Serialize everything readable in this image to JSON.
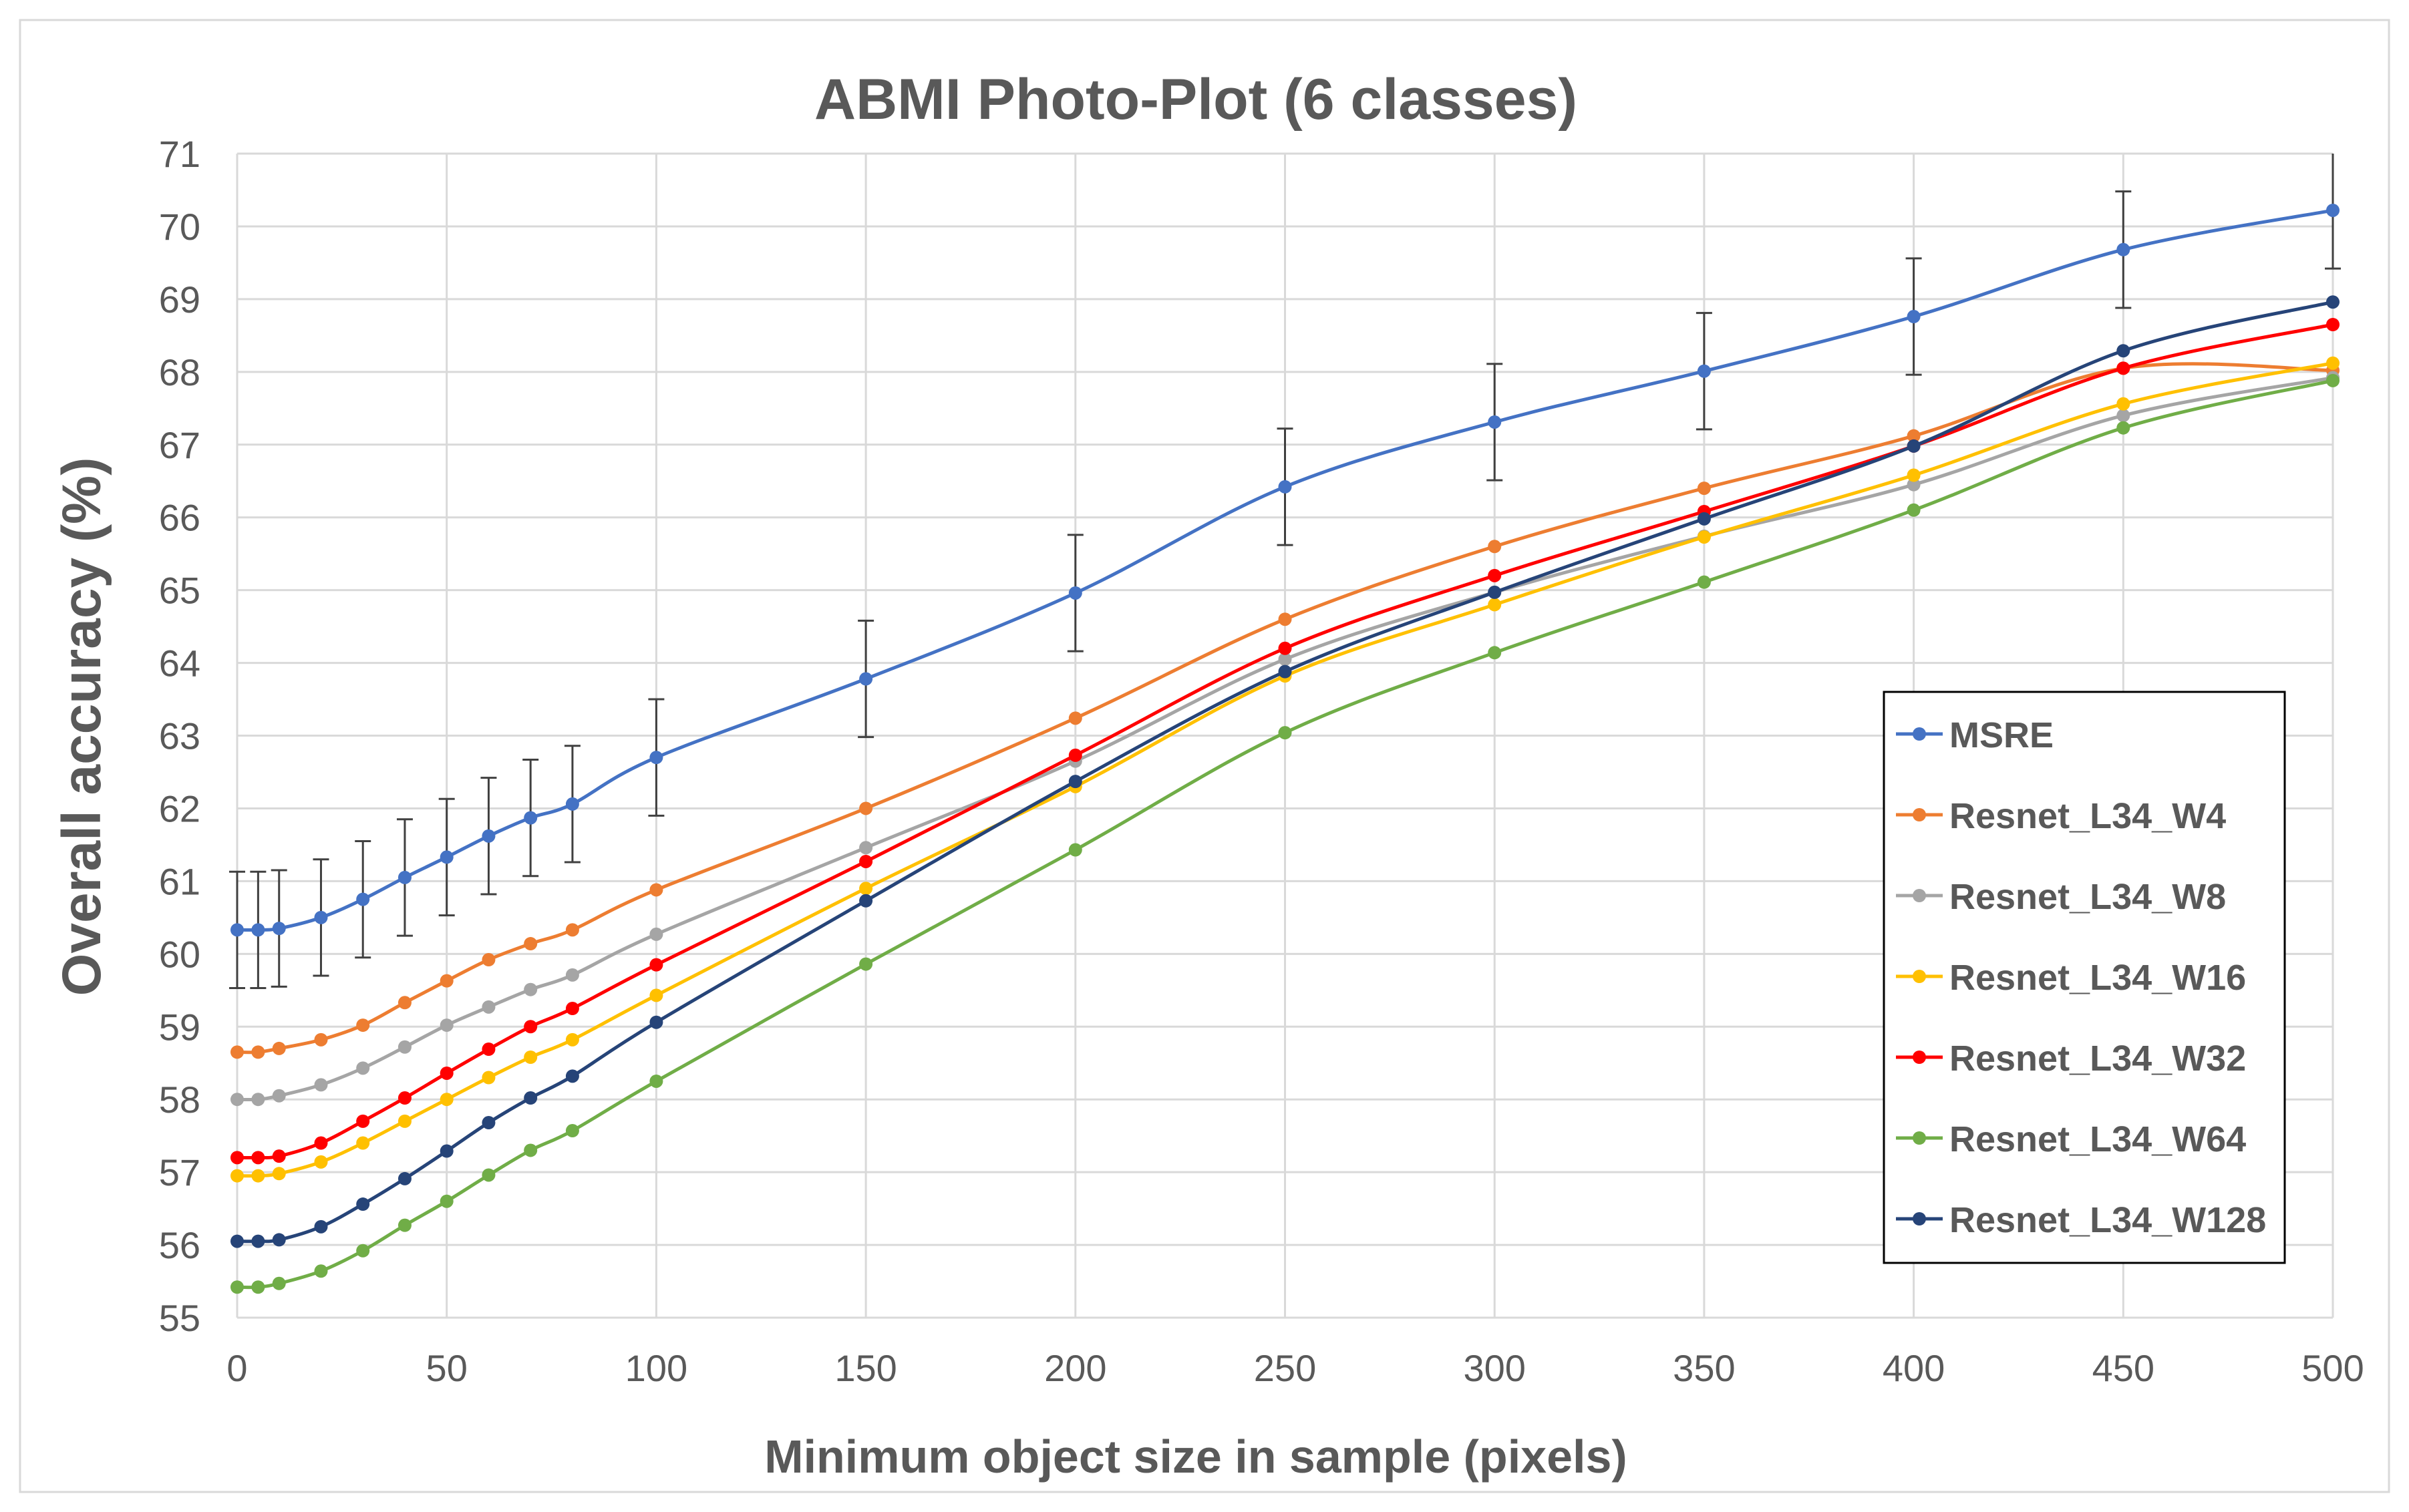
{
  "chart_data": {
    "type": "line",
    "title": "ABMI Photo-Plot (6 classes)",
    "xlabel": "Minimum object size in sample (pixels)",
    "ylabel": "Overall accuracy (%)",
    "xlim": [
      0,
      500
    ],
    "ylim": [
      55,
      71
    ],
    "xticks": [
      0,
      50,
      100,
      150,
      200,
      250,
      300,
      350,
      400,
      450,
      500
    ],
    "yticks": [
      55,
      56,
      57,
      58,
      59,
      60,
      61,
      62,
      63,
      64,
      65,
      66,
      67,
      68,
      69,
      70,
      71
    ],
    "grid": true,
    "legend_position": "right",
    "x": [
      0,
      5,
      10,
      20,
      30,
      40,
      50,
      60,
      70,
      80,
      100,
      150,
      200,
      250,
      300,
      350,
      400,
      450,
      500
    ],
    "series": [
      {
        "name": "MSRE",
        "color": "#4472C4",
        "values": [
          60.33,
          60.33,
          60.35,
          60.5,
          60.75,
          61.05,
          61.33,
          61.62,
          61.87,
          62.06,
          62.7,
          63.78,
          64.96,
          66.42,
          67.31,
          68.01,
          68.76,
          69.68,
          70.22
        ],
        "error": 0.8,
        "error_x": [
          0,
          5,
          10,
          20,
          30,
          40,
          50,
          60,
          70,
          80,
          100,
          150,
          200,
          250,
          300,
          350,
          400,
          450,
          500
        ]
      },
      {
        "name": "Resnet_L34_W4",
        "color": "#ED7D31",
        "values": [
          58.65,
          58.65,
          58.7,
          58.82,
          59.02,
          59.33,
          59.63,
          59.92,
          60.14,
          60.33,
          60.88,
          62.0,
          63.24,
          64.6,
          65.6,
          66.4,
          67.12,
          68.05,
          68.02
        ]
      },
      {
        "name": "Resnet_L34_W8",
        "color": "#A5A5A5",
        "values": [
          58.0,
          58.0,
          58.05,
          58.2,
          58.43,
          58.72,
          59.02,
          59.27,
          59.51,
          59.71,
          60.27,
          61.46,
          62.65,
          64.05,
          64.97,
          65.74,
          66.45,
          67.4,
          67.92
        ]
      },
      {
        "name": "Resnet_L34_W16",
        "color": "#FFC000",
        "values": [
          56.95,
          56.95,
          56.98,
          57.14,
          57.4,
          57.7,
          58.0,
          58.3,
          58.58,
          58.82,
          59.43,
          60.9,
          62.3,
          63.82,
          64.8,
          65.73,
          66.58,
          67.56,
          68.12
        ]
      },
      {
        "name": "Resnet_L34_W32",
        "color": "#FF0000",
        "values": [
          57.2,
          57.2,
          57.22,
          57.4,
          57.7,
          58.02,
          58.36,
          58.69,
          59.0,
          59.25,
          59.85,
          61.27,
          62.73,
          64.2,
          65.2,
          66.08,
          66.98,
          68.05,
          68.65
        ]
      },
      {
        "name": "Resnet_L34_W64",
        "color": "#70AD47",
        "values": [
          55.42,
          55.42,
          55.47,
          55.64,
          55.92,
          56.27,
          56.6,
          56.96,
          57.3,
          57.57,
          58.25,
          59.86,
          61.43,
          63.04,
          64.14,
          65.11,
          66.1,
          67.23,
          67.88
        ]
      },
      {
        "name": "Resnet_L34_W128",
        "color": "#264478",
        "values": [
          56.05,
          56.05,
          56.07,
          56.25,
          56.56,
          56.91,
          57.29,
          57.68,
          58.02,
          58.32,
          59.06,
          60.73,
          62.37,
          63.88,
          64.97,
          65.98,
          66.98,
          68.29,
          68.96
        ]
      }
    ]
  }
}
